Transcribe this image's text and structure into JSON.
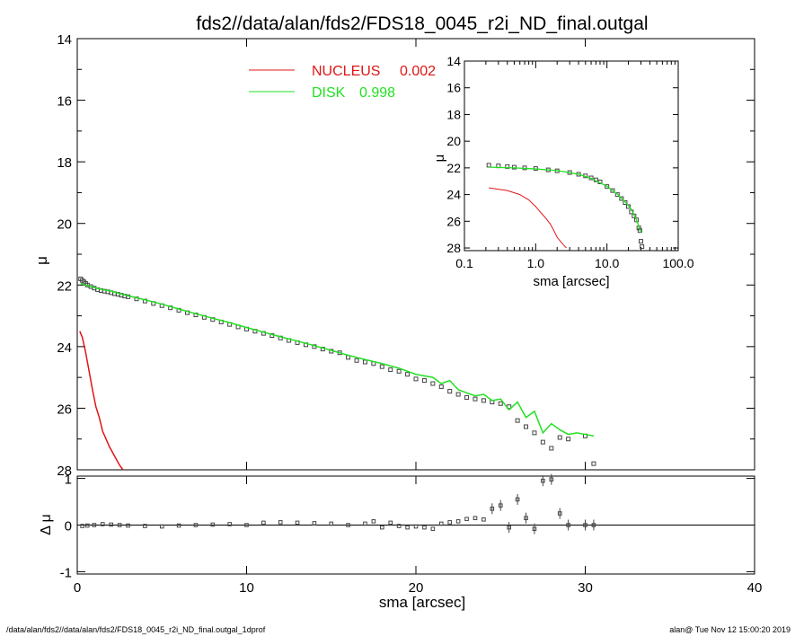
{
  "title": "fds2//data/alan/fds2/FDS18_0045_r2i_ND_final.outgal",
  "footer_left": "/data/alan/fds2//data/alan/fds2/FDS18_0045_r2i_ND_final.outgal_1dprof",
  "footer_right": "alan@  Tue Nov 12 15:00:20 2019",
  "colors": {
    "nucleus": "#e01515",
    "disk": "#22e022",
    "axes": "#000000",
    "points": "#444444"
  },
  "chart_data": [
    {
      "id": "main",
      "type": "scatter",
      "xlabel": "sma [arcsec]",
      "ylabel": "μ",
      "xlim": [
        0,
        40
      ],
      "ylim": [
        28,
        14
      ],
      "x_ticks": [
        0,
        10,
        20,
        30,
        40
      ],
      "y_ticks": [
        14,
        16,
        18,
        20,
        22,
        24,
        26,
        28
      ],
      "legend": [
        {
          "label": "NUCLEUS",
          "value": "0.002",
          "color": "#e01515"
        },
        {
          "label": "DISK",
          "value": "0.998",
          "color": "#22e022"
        }
      ],
      "series": [
        {
          "name": "data",
          "style": "points",
          "x": [
            0.2,
            0.3,
            0.4,
            0.5,
            0.6,
            0.8,
            1.0,
            1.2,
            1.4,
            1.6,
            1.8,
            2.0,
            2.2,
            2.4,
            2.6,
            2.8,
            3.0,
            3.5,
            4.0,
            4.5,
            5.0,
            5.5,
            6.0,
            6.5,
            7.0,
            7.5,
            8.0,
            8.5,
            9.0,
            9.5,
            10.0,
            10.5,
            11.0,
            11.5,
            12.0,
            12.5,
            13.0,
            13.5,
            14.0,
            14.5,
            15.0,
            15.5,
            16.0,
            16.5,
            17.0,
            17.5,
            18.0,
            18.5,
            19.0,
            19.5,
            20.0,
            20.5,
            21.0,
            21.5,
            22.0,
            22.5,
            23.0,
            23.5,
            24.0,
            24.5,
            25.0,
            25.5,
            26.0,
            26.5,
            27.0,
            27.5,
            28.0,
            28.5,
            29.0,
            30.0,
            30.5
          ],
          "y": [
            21.8,
            21.85,
            21.9,
            21.95,
            22.0,
            22.05,
            22.1,
            22.15,
            22.18,
            22.2,
            22.22,
            22.25,
            22.28,
            22.3,
            22.33,
            22.36,
            22.38,
            22.45,
            22.52,
            22.6,
            22.67,
            22.74,
            22.82,
            22.9,
            22.97,
            23.05,
            23.12,
            23.2,
            23.28,
            23.36,
            23.43,
            23.5,
            23.57,
            23.64,
            23.72,
            23.8,
            23.87,
            23.94,
            24.0,
            24.08,
            24.15,
            24.2,
            24.35,
            24.45,
            24.5,
            24.55,
            24.65,
            24.75,
            24.8,
            24.9,
            25.05,
            25.1,
            25.2,
            25.3,
            25.45,
            25.55,
            25.65,
            25.7,
            25.75,
            25.8,
            25.85,
            25.95,
            26.4,
            26.6,
            26.8,
            27.1,
            27.3,
            26.95,
            27.0,
            26.9,
            27.8
          ]
        },
        {
          "name": "DISK",
          "style": "line",
          "color": "#22e022",
          "x": [
            0.2,
            0.5,
            1.0,
            1.5,
            2.0,
            3.0,
            4.0,
            5.0,
            6.0,
            7.0,
            8.0,
            9.0,
            10.0,
            11.0,
            12.0,
            13.0,
            14.0,
            15.0,
            16.0,
            17.0,
            18.0,
            19.0,
            20.0,
            21.0,
            21.5,
            22.0,
            22.5,
            23.0,
            23.5,
            24.0,
            24.5,
            25.0,
            25.5,
            26.0,
            26.5,
            27.0,
            27.5,
            28.0,
            28.5,
            29.0,
            29.5,
            30.0,
            30.5
          ],
          "y": [
            21.95,
            22.0,
            22.08,
            22.15,
            22.2,
            22.35,
            22.48,
            22.62,
            22.78,
            22.93,
            23.08,
            23.22,
            23.38,
            23.53,
            23.68,
            23.82,
            23.97,
            24.12,
            24.28,
            24.42,
            24.55,
            24.7,
            24.9,
            25.0,
            25.2,
            25.1,
            25.4,
            25.5,
            25.6,
            25.55,
            25.75,
            25.7,
            26.05,
            25.8,
            26.3,
            26.1,
            26.8,
            26.5,
            26.7,
            26.85,
            26.8,
            26.85,
            26.9
          ]
        },
        {
          "name": "NUCLEUS",
          "style": "line",
          "color": "#e01515",
          "x": [
            0.15,
            0.3,
            0.5,
            0.7,
            0.9,
            1.1,
            1.3,
            1.5,
            1.7,
            1.9,
            2.1,
            2.3,
            2.5,
            2.7
          ],
          "y": [
            23.5,
            23.7,
            24.2,
            24.8,
            25.4,
            25.95,
            26.3,
            26.75,
            27.0,
            27.25,
            27.45,
            27.65,
            27.85,
            28.0
          ]
        }
      ]
    },
    {
      "id": "residual",
      "type": "scatter",
      "ylabel": "Δ μ",
      "xlim": [
        0,
        40
      ],
      "ylim": [
        -1.05,
        1.05
      ],
      "y_ticks": [
        -1,
        0,
        1
      ],
      "series": [
        {
          "name": "residual",
          "x": [
            0.3,
            0.6,
            1.0,
            1.5,
            2.0,
            2.5,
            3.0,
            4.0,
            5.0,
            6.0,
            7.0,
            8.0,
            9.0,
            10.0,
            11.0,
            12.0,
            13.0,
            14.0,
            15.0,
            16.0,
            17.0,
            17.5,
            18.0,
            18.5,
            19.0,
            19.5,
            20.0,
            20.5,
            21.0,
            21.5,
            22.0,
            22.5,
            23.0,
            23.5,
            24.0,
            24.5,
            25.0,
            25.5,
            26.0,
            26.5,
            27.0,
            27.5,
            28.0,
            28.5,
            29.0,
            30.0,
            30.5
          ],
          "y": [
            -0.02,
            -0.01,
            0.0,
            0.02,
            0.01,
            0.0,
            -0.01,
            -0.02,
            -0.03,
            -0.01,
            0.0,
            0.01,
            0.02,
            0.0,
            0.05,
            0.06,
            0.05,
            0.04,
            0.03,
            0.0,
            0.03,
            0.08,
            -0.05,
            0.05,
            -0.02,
            -0.05,
            -0.03,
            -0.05,
            -0.08,
            0.03,
            0.06,
            0.08,
            0.13,
            0.15,
            0.12,
            0.35,
            0.42,
            -0.05,
            0.55,
            0.15,
            -0.08,
            0.95,
            0.98,
            0.25,
            0.0,
            0.0,
            0.0
          ]
        }
      ]
    },
    {
      "id": "inset",
      "type": "scatter",
      "xlabel": "sma [arcsec]",
      "ylabel": "μ",
      "x_scale": "log",
      "xlim": [
        0.1,
        100
      ],
      "ylim": [
        28.2,
        14
      ],
      "x_tick_labels": [
        "0.1",
        "1.0",
        "10.0",
        "100.0"
      ],
      "x_ticks": [
        0.1,
        1,
        10,
        100
      ],
      "y_ticks": [
        14,
        16,
        18,
        20,
        22,
        24,
        26,
        28
      ],
      "series": [
        {
          "name": "data",
          "x": [
            0.22,
            0.3,
            0.4,
            0.5,
            0.7,
            1.0,
            1.5,
            2.0,
            3.0,
            4.0,
            5.0,
            6.0,
            7.0,
            8.0,
            10.0,
            12.0,
            14.0,
            16.0,
            18.0,
            20.0,
            22.0,
            24.0,
            26.0,
            28.0,
            29.0,
            30.0,
            31.0
          ],
          "y": [
            21.8,
            21.85,
            21.9,
            21.95,
            22.0,
            22.05,
            22.15,
            22.22,
            22.35,
            22.48,
            22.6,
            22.75,
            22.9,
            23.05,
            23.4,
            23.7,
            24.0,
            24.3,
            24.6,
            24.9,
            25.3,
            25.6,
            25.9,
            26.5,
            26.7,
            27.5,
            27.9
          ]
        },
        {
          "name": "DISK",
          "x": [
            0.22,
            0.5,
            1.0,
            2.0,
            4.0,
            6.0,
            10.0,
            14.0,
            18.0,
            22.0,
            26.0,
            30.0
          ],
          "y": [
            21.95,
            22.0,
            22.08,
            22.2,
            22.48,
            22.78,
            23.38,
            23.97,
            24.55,
            25.1,
            25.9,
            26.85
          ]
        },
        {
          "name": "NUCLEUS",
          "x": [
            0.22,
            0.4,
            0.6,
            0.8,
            1.0,
            1.2,
            1.4,
            1.6,
            1.8,
            2.0,
            2.3,
            2.7
          ],
          "y": [
            23.5,
            23.7,
            24.0,
            24.4,
            24.9,
            25.4,
            25.8,
            26.2,
            26.7,
            27.2,
            27.6,
            28.0
          ]
        }
      ]
    }
  ]
}
